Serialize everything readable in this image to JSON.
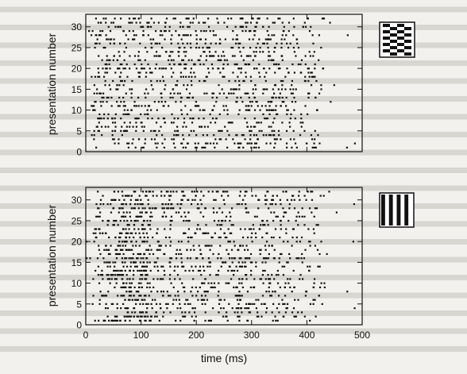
{
  "chart_data": [
    {
      "type": "scatter",
      "panel": "top",
      "ylabel": "presentation number",
      "xlabel": "",
      "xlim": [
        0,
        500
      ],
      "ylim": [
        0,
        33
      ],
      "yticks": [
        "0",
        "5",
        "10",
        "15",
        "20",
        "25",
        "30"
      ],
      "xtick_labels_shown": false,
      "stimulus_icon": "checkerboard-stimulus-icon",
      "spikes": "dense random spike trains for presentations 1-32 across 0-500 ms; trains extend to ~440 ms with sparser spikes near the end",
      "rows": 32,
      "spike_time_range": [
        0,
        440
      ]
    },
    {
      "type": "scatter",
      "panel": "bottom",
      "ylabel": "presentation number",
      "xlabel": "time (ms)",
      "xlim": [
        0,
        500
      ],
      "ylim": [
        0,
        33
      ],
      "yticks": [
        "0",
        "5",
        "10",
        "15",
        "20",
        "25",
        "30"
      ],
      "xticks": [
        "0",
        "100",
        "200",
        "300",
        "400",
        "500"
      ],
      "stimulus_icon": "vertical-bars-stimulus-icon",
      "spikes": "spike trains for presentations 1-32; dense onset burst near 50-100 ms, then sustained firing to ~440 ms",
      "rows": 32,
      "spike_time_range": [
        0,
        440
      ]
    }
  ],
  "colors": {
    "ink": "#111111",
    "paper": "#f2f1ee"
  }
}
